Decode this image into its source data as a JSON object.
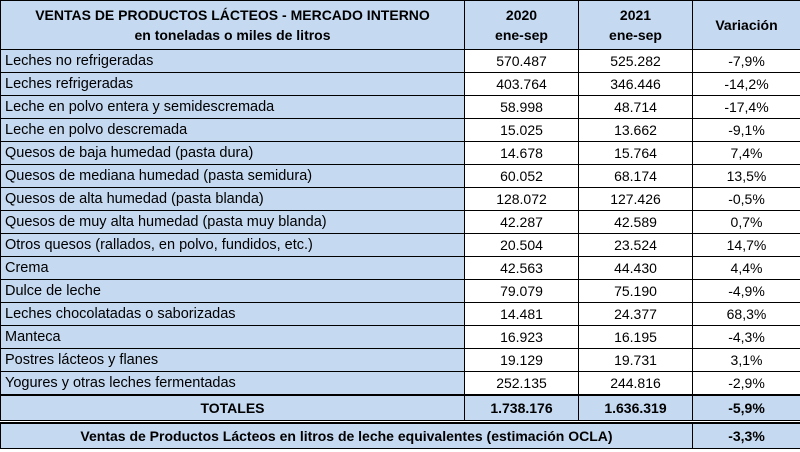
{
  "header": {
    "title_line1": "VENTAS DE PRODUCTOS LÁCTEOS - MERCADO INTERNO",
    "title_line2": "en toneladas o miles de litros",
    "col2020_year": "2020",
    "col2020_period": "ene-sep",
    "col2021_year": "2021",
    "col2021_period": "ene-sep",
    "col_var": "Variación"
  },
  "rows": [
    {
      "label": "Leches no refrigeradas",
      "y2020": "570.487",
      "y2021": "525.282",
      "var": "-7,9%"
    },
    {
      "label": "Leches refrigeradas",
      "y2020": "403.764",
      "y2021": "346.446",
      "var": "-14,2%"
    },
    {
      "label": "Leche en polvo entera y semidescremada",
      "y2020": "58.998",
      "y2021": "48.714",
      "var": "-17,4%"
    },
    {
      "label": "Leche en polvo descremada",
      "y2020": "15.025",
      "y2021": "13.662",
      "var": "-9,1%"
    },
    {
      "label": "Quesos de baja humedad (pasta dura)",
      "y2020": "14.678",
      "y2021": "15.764",
      "var": "7,4%"
    },
    {
      "label": "Quesos de mediana humedad (pasta semidura)",
      "y2020": "60.052",
      "y2021": "68.174",
      "var": "13,5%"
    },
    {
      "label": "Quesos de alta humedad (pasta blanda)",
      "y2020": "128.072",
      "y2021": "127.426",
      "var": "-0,5%"
    },
    {
      "label": "Quesos de muy alta humedad (pasta muy blanda)",
      "y2020": "42.287",
      "y2021": "42.589",
      "var": "0,7%"
    },
    {
      "label": "Otros quesos (rallados, en polvo, fundidos, etc.)",
      "y2020": "20.504",
      "y2021": "23.524",
      "var": "14,7%"
    },
    {
      "label": "Crema",
      "y2020": "42.563",
      "y2021": "44.430",
      "var": "4,4%"
    },
    {
      "label": "Dulce de leche",
      "y2020": "79.079",
      "y2021": "75.190",
      "var": "-4,9%"
    },
    {
      "label": "Leches chocolatadas o saborizadas",
      "y2020": "14.481",
      "y2021": "24.377",
      "var": "68,3%"
    },
    {
      "label": "Manteca",
      "y2020": "16.923",
      "y2021": "16.195",
      "var": "-4,3%"
    },
    {
      "label": "Postres lácteos y flanes",
      "y2020": "19.129",
      "y2021": "19.731",
      "var": "3,1%"
    },
    {
      "label": "Yogures y otras leches fermentadas",
      "y2020": "252.135",
      "y2021": "244.816",
      "var": "-2,9%"
    }
  ],
  "totals": {
    "label": "TOTALES",
    "y2020": "1.738.176",
    "y2021": "1.636.319",
    "var": "-5,9%"
  },
  "equivalent": {
    "label": "Ventas de Productos Lácteos en litros de leche equivalentes (estimación OCLA)",
    "var": "-3,3%"
  }
}
